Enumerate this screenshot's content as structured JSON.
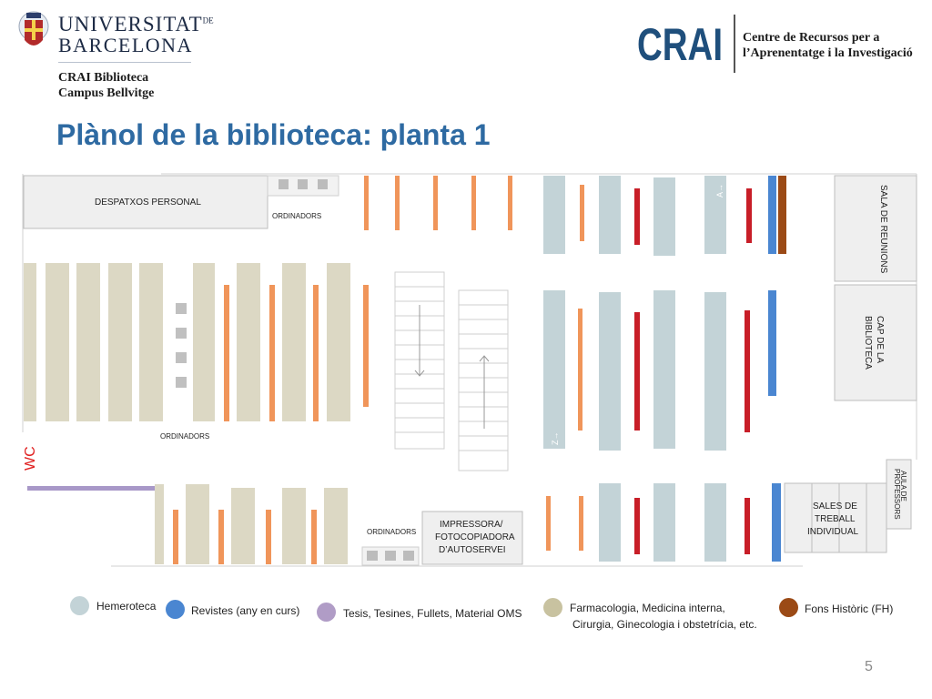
{
  "header": {
    "university_line1": "UNIVERSITAT",
    "university_de": "DE",
    "university_line2": "BARCELONA",
    "subtitle_line1": "CRAI  Biblioteca",
    "subtitle_line2": "Campus Bellvitge",
    "crai_logo_text": "CRAI",
    "crai_tagline_line1": "Centre de Recursos per a",
    "crai_tagline_line2": "l’Aprenentatge i la Investigació"
  },
  "title": "Plànol de la biblioteca: planta 1",
  "plan": {
    "despatxos": "DESPATXOS PERSONAL",
    "ordinadors_top": "ORDINADORS",
    "ordinadors_mid": "ORDINADORS",
    "ordinadors_bottom": "ORDINADORS",
    "wc": "WC",
    "impressora_line1": "IMPRESSORA/",
    "impressora_line2": "FOTOCOPIADORA",
    "impressora_line3": "D’AUTOSERVEI",
    "sala_reunions": "SALA DE REUNIONS",
    "cap_line1": "CAP DE LA",
    "cap_line2": "BIBLIOTECA",
    "sales_line1": "SALES DE",
    "sales_line2": "TREBALL",
    "sales_line3": "INDIVIDUAL",
    "aula_line1": "AULA DE",
    "aula_line2": "PROFESSORS",
    "range_a": "A→",
    "range_z": "Z→"
  },
  "legend": [
    {
      "label": "Hemeroteca",
      "color": "#c3d3d7"
    },
    {
      "label": "Revistes (any en curs)",
      "color": "#4a86d1"
    },
    {
      "label": "Tesis, Tesines, Fullets, Material OMS",
      "color": "#b09cc6"
    },
    {
      "label": "Farmacologia, Medicina interna,",
      "label2": "Cirurgia, Ginecologia i obstetrícia, etc.",
      "color": "#c8c2a0"
    },
    {
      "label": "Fons Històric (FH)",
      "color": "#9b4a16"
    }
  ],
  "colors": {
    "title_blue": "#2e6aa2",
    "shelf_beige": "#dcd8c4",
    "shelf_orange": "#f0955a",
    "shelf_red": "#c81e28",
    "shelf_blue": "#4a86d1",
    "shelf_brown": "#9b4a16",
    "shelf_grey_blue": "#c3d3d7",
    "wc_red": "#e02020",
    "purple": "#a898c8"
  },
  "page_number": "5"
}
